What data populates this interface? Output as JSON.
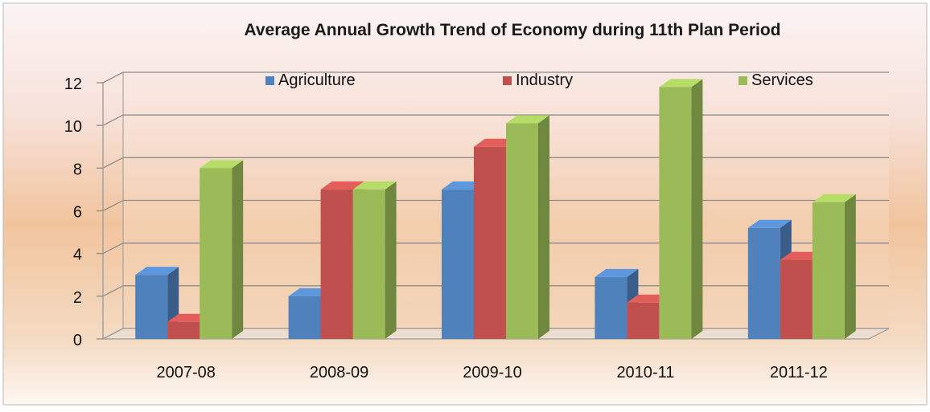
{
  "chart_data": {
    "type": "bar",
    "title": "Average Annual Growth Trend of Economy during 11th Plan Period",
    "xlabel": "",
    "ylabel": "",
    "categories": [
      "2007-08",
      "2008-09",
      "2009-10",
      "2010-11",
      "2011-12"
    ],
    "series": [
      {
        "name": "Agriculture",
        "values": [
          3.0,
          2.0,
          7.0,
          2.9,
          5.2
        ],
        "color": "#4f81bd"
      },
      {
        "name": "Industry",
        "values": [
          0.8,
          7.0,
          9.0,
          1.7,
          3.7
        ],
        "color": "#c0504d"
      },
      {
        "name": "Services",
        "values": [
          8.0,
          7.0,
          10.1,
          11.8,
          6.4
        ],
        "color": "#9bbb59"
      }
    ],
    "ylim": [
      0,
      12
    ],
    "yticks": [
      0,
      2,
      4,
      6,
      8,
      10,
      12
    ],
    "grid": true,
    "legend_position": "top",
    "style": "3d-clustered-column"
  }
}
